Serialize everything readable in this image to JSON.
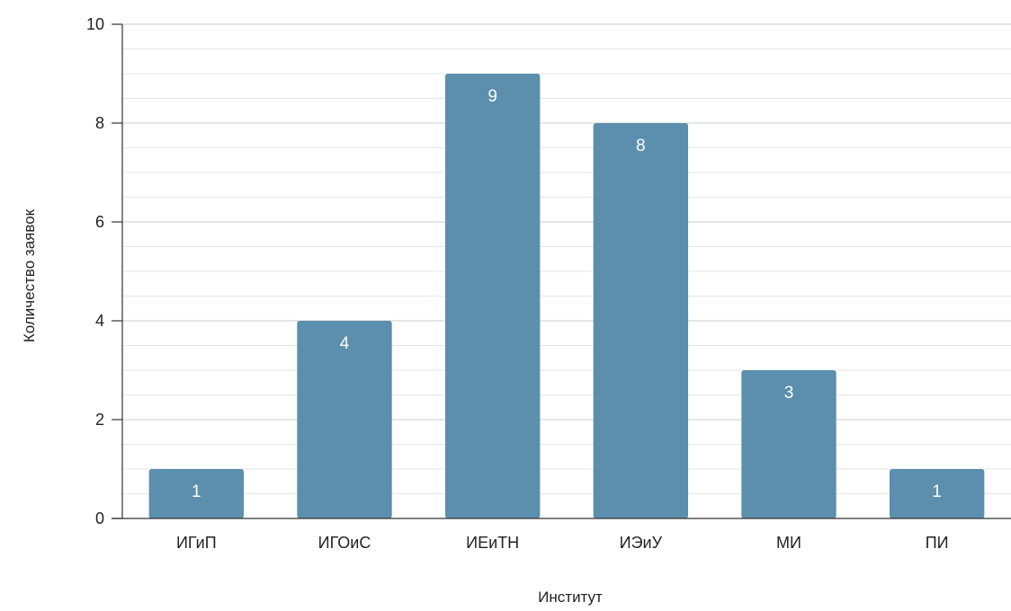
{
  "chart_data": {
    "type": "bar",
    "title": "",
    "xlabel": "Институт",
    "ylabel": "Количество заявок",
    "categories": [
      "ИГиП",
      "ИГОиС",
      "ИЕиТН",
      "ИЭиУ",
      "МИ",
      "ПИ"
    ],
    "values": [
      1,
      4,
      9,
      8,
      3,
      1
    ],
    "ylim": [
      0,
      10
    ],
    "yticks": [
      0,
      2,
      4,
      6,
      8,
      10
    ],
    "minor_grid_step": 0.5,
    "grid": true,
    "legend": "none",
    "data_labels": true,
    "bar_color": "#5b8fad",
    "label_color": "#ffffff",
    "axis_color": "#333333",
    "grid_color": "#d9d9d9"
  }
}
